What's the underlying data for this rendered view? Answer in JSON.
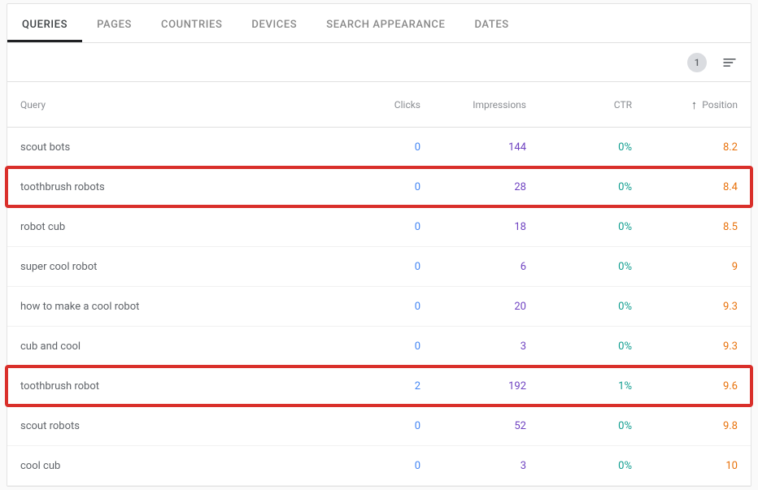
{
  "tabs": {
    "queries": "QUERIES",
    "pages": "PAGES",
    "countries": "COUNTRIES",
    "devices": "DEVICES",
    "search_appearance": "SEARCH APPEARANCE",
    "dates": "DATES"
  },
  "toolbar": {
    "filter_count": "1"
  },
  "columns": {
    "query": "Query",
    "clicks": "Clicks",
    "impressions": "Impressions",
    "ctr": "CTR",
    "position": "Position"
  },
  "colors": {
    "clicks": "#4285f4",
    "impressions": "#6f42c1",
    "ctr": "#0f9d8f",
    "position": "#e8710a",
    "row_text": "#5f6368",
    "highlight_border": "#d92f2a",
    "divider": "#e0e0e0"
  },
  "rows": [
    {
      "query": "scout bots",
      "clicks": "0",
      "impressions": "144",
      "ctr": "0%",
      "position": "8.2",
      "highlighted": false
    },
    {
      "query": "toothbrush robots",
      "clicks": "0",
      "impressions": "28",
      "ctr": "0%",
      "position": "8.4",
      "highlighted": true
    },
    {
      "query": "robot cub",
      "clicks": "0",
      "impressions": "18",
      "ctr": "0%",
      "position": "8.5",
      "highlighted": false
    },
    {
      "query": "super cool robot",
      "clicks": "0",
      "impressions": "6",
      "ctr": "0%",
      "position": "9",
      "highlighted": false
    },
    {
      "query": "how to make a cool robot",
      "clicks": "0",
      "impressions": "20",
      "ctr": "0%",
      "position": "9.3",
      "highlighted": false
    },
    {
      "query": "cub and cool",
      "clicks": "0",
      "impressions": "3",
      "ctr": "0%",
      "position": "9.3",
      "highlighted": false
    },
    {
      "query": "toothbrush robot",
      "clicks": "2",
      "impressions": "192",
      "ctr": "1%",
      "position": "9.6",
      "highlighted": true
    },
    {
      "query": "scout robots",
      "clicks": "0",
      "impressions": "52",
      "ctr": "0%",
      "position": "9.8",
      "highlighted": false
    },
    {
      "query": "cool cub",
      "clicks": "0",
      "impressions": "3",
      "ctr": "0%",
      "position": "10",
      "highlighted": false
    }
  ]
}
